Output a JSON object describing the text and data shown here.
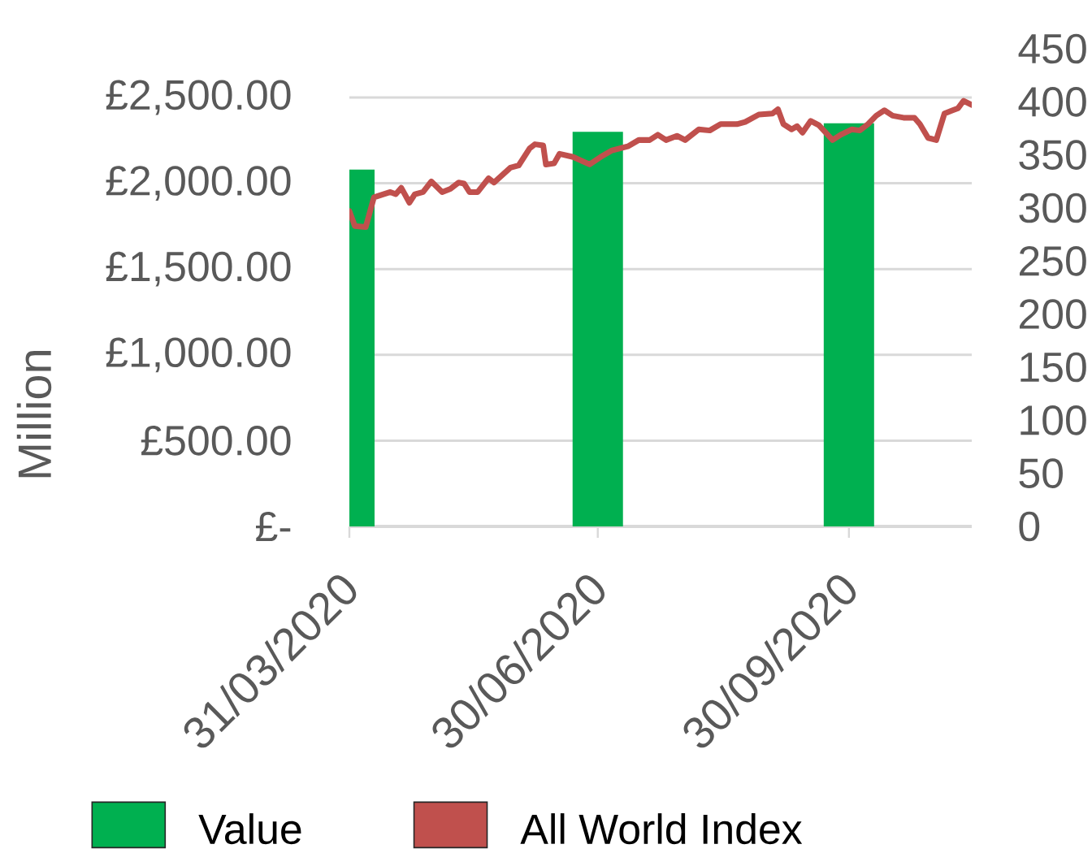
{
  "chart_data": {
    "type": "bar",
    "ylabel": "Million",
    "xlim": [
      "2020-03-31",
      "2020-11-14"
    ],
    "xticks": [
      {
        "value": "2020-03-31",
        "label": "31/03/2020"
      },
      {
        "value": "2020-06-30",
        "label": "30/06/2020"
      },
      {
        "value": "2020-09-30",
        "label": "30/09/2020"
      }
    ],
    "ylim": [
      0,
      2500
    ],
    "yticks": [
      {
        "value": 0,
        "label": "£-"
      },
      {
        "value": 500,
        "label": "£500.00"
      },
      {
        "value": 1000,
        "label": "£1,000.00"
      },
      {
        "value": 1500,
        "label": "£1,500.00"
      },
      {
        "value": 2000,
        "label": "£2,000.00"
      },
      {
        "value": 2500,
        "label": "£2,500.00"
      }
    ],
    "y2lim": [
      0,
      450
    ],
    "y2ticks": [
      0,
      50,
      100,
      150,
      200,
      250,
      300,
      350,
      400,
      450
    ],
    "grid": "y",
    "legend": "bottom",
    "marker": "none",
    "series": [
      {
        "name": "Value",
        "color": "#00b050",
        "x": [
          "2020-03-31",
          "2020-06-30",
          "2020-09-30"
        ],
        "values": [
          2080,
          2300,
          2350
        ]
      },
      {
        "name": "All World Index",
        "type": "line",
        "axis": "y2",
        "color": "#c0504d",
        "x": [
          "2020-03-31",
          "2020-04-02",
          "2020-04-06",
          "2020-04-09",
          "2020-04-15",
          "2020-04-17",
          "2020-04-19",
          "2020-04-22",
          "2020-04-24",
          "2020-04-27",
          "2020-04-30",
          "2020-05-04",
          "2020-05-07",
          "2020-05-10",
          "2020-05-12",
          "2020-05-14",
          "2020-05-17",
          "2020-05-21",
          "2020-05-23",
          "2020-05-29",
          "2020-06-01",
          "2020-06-05",
          "2020-06-07",
          "2020-06-10",
          "2020-06-11",
          "2020-06-14",
          "2020-06-16",
          "2020-06-21",
          "2020-06-27",
          "2020-07-01",
          "2020-07-05",
          "2020-07-11",
          "2020-07-15",
          "2020-07-19",
          "2020-07-22",
          "2020-07-25",
          "2020-07-29",
          "2020-08-01",
          "2020-08-06",
          "2020-08-10",
          "2020-08-14",
          "2020-08-20",
          "2020-08-23",
          "2020-08-28",
          "2020-09-02",
          "2020-09-04",
          "2020-09-06",
          "2020-09-09",
          "2020-09-11",
          "2020-09-13",
          "2020-09-16",
          "2020-09-19",
          "2020-09-24",
          "2020-09-27",
          "2020-10-01",
          "2020-10-04",
          "2020-10-07",
          "2020-10-10",
          "2020-10-13",
          "2020-10-16",
          "2020-10-20",
          "2020-10-24",
          "2020-10-26",
          "2020-10-29",
          "2020-11-01",
          "2020-11-04",
          "2020-11-07",
          "2020-11-09",
          "2020-11-11",
          "2020-11-14"
        ],
        "values": [
          297,
          283,
          282,
          310,
          315,
          313,
          319,
          305,
          313,
          315,
          325,
          315,
          318,
          324,
          323,
          315,
          315,
          328,
          324,
          338,
          340,
          356,
          360,
          359,
          341,
          342,
          351,
          348,
          341,
          348,
          354,
          358,
          364,
          364,
          369,
          364,
          368,
          364,
          374,
          373,
          379,
          379,
          381,
          388,
          389,
          393,
          379,
          374,
          377,
          371,
          382,
          378,
          364,
          369,
          374,
          373,
          379,
          387,
          392,
          387,
          385,
          385,
          379,
          366,
          364,
          389,
          392,
          394,
          401,
          397
        ]
      }
    ]
  }
}
